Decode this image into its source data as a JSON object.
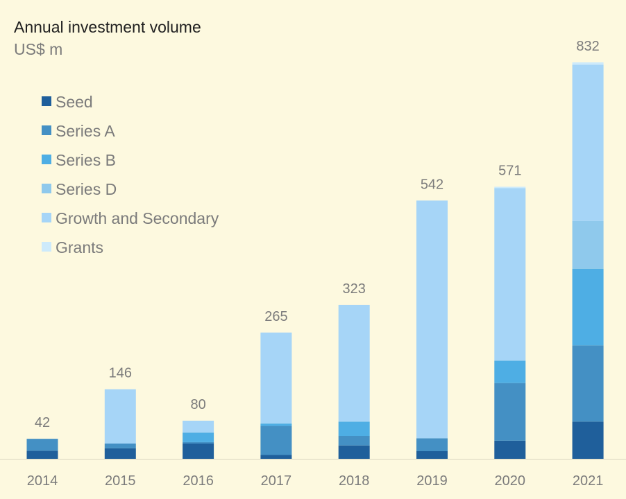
{
  "chart_data": {
    "type": "bar",
    "stacked": true,
    "title": "Annual investment volume",
    "subtitle": "US$ m",
    "categories": [
      "2014",
      "2015",
      "2016",
      "2017",
      "2018",
      "2019",
      "2020",
      "2021"
    ],
    "totals": [
      "42",
      "146",
      "80",
      "265",
      "323",
      "542",
      "571",
      "832"
    ],
    "ylim": [
      0,
      832
    ],
    "grid": false,
    "legend_position": "top-left",
    "series": [
      {
        "name": "Seed",
        "color": "#1f5f9b",
        "values": [
          17,
          22,
          32,
          8,
          28,
          16,
          38,
          78
        ]
      },
      {
        "name": "Series A",
        "color": "#4490c4",
        "values": [
          25,
          10,
          3,
          61,
          20,
          27,
          121,
          160
        ]
      },
      {
        "name": "Series B",
        "color": "#4eaee4",
        "values": [
          0,
          0,
          20,
          5,
          30,
          0,
          47,
          161
        ]
      },
      {
        "name": "Series D",
        "color": "#8fc9ec",
        "values": [
          0,
          0,
          0,
          0,
          0,
          0,
          0,
          100
        ]
      },
      {
        "name": "Growth and Secondary",
        "color": "#a6d5f7",
        "values": [
          0,
          114,
          25,
          191,
          245,
          499,
          362,
          328
        ]
      },
      {
        "name": "Grants",
        "color": "#cdeafb",
        "values": [
          0,
          0,
          0,
          0,
          0,
          0,
          3,
          5
        ]
      }
    ]
  }
}
